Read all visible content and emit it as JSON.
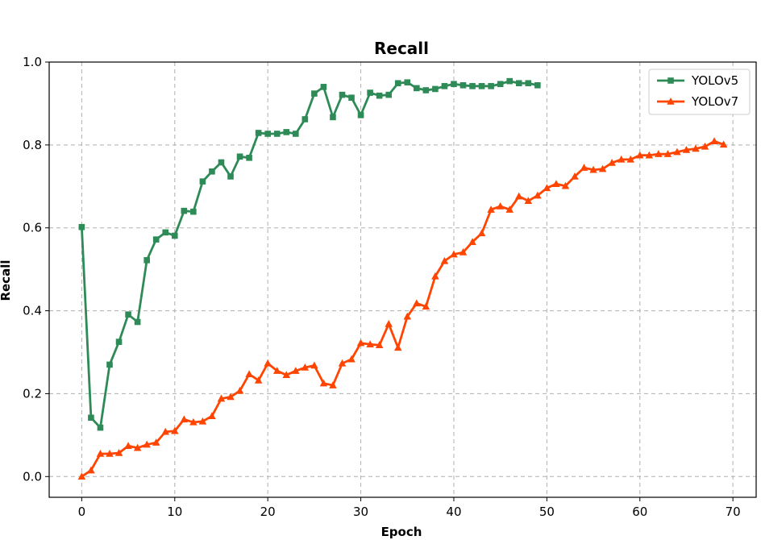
{
  "chart_data": {
    "type": "line",
    "title": "Recall",
    "xlabel": "Epoch",
    "ylabel": "Recall",
    "xlim": [
      -3.5,
      72.5
    ],
    "ylim": [
      -0.05,
      1.0
    ],
    "xticks": [
      "0",
      "10",
      "20",
      "30",
      "40",
      "50",
      "60",
      "70"
    ],
    "yticks": [
      "0.0",
      "0.2",
      "0.4",
      "0.6",
      "0.8",
      "1.0"
    ],
    "grid": true,
    "legend_position": "top-right",
    "series": [
      {
        "name": "YOLOv5",
        "color": "#2e8b57",
        "marker": "square",
        "x": [
          0,
          1,
          2,
          3,
          4,
          5,
          6,
          7,
          8,
          9,
          10,
          11,
          12,
          13,
          14,
          15,
          16,
          17,
          18,
          19,
          20,
          21,
          22,
          23,
          24,
          25,
          26,
          27,
          28,
          29,
          30,
          31,
          32,
          33,
          34,
          35,
          36,
          37,
          38,
          39,
          40,
          41,
          42,
          43,
          44,
          45,
          46,
          47,
          48,
          49
        ],
        "values": [
          0.602,
          0.142,
          0.118,
          0.27,
          0.325,
          0.391,
          0.373,
          0.522,
          0.572,
          0.589,
          0.581,
          0.641,
          0.639,
          0.712,
          0.736,
          0.758,
          0.724,
          0.772,
          0.769,
          0.829,
          0.827,
          0.827,
          0.831,
          0.827,
          0.862,
          0.924,
          0.94,
          0.867,
          0.921,
          0.914,
          0.872,
          0.926,
          0.919,
          0.921,
          0.949,
          0.951,
          0.937,
          0.932,
          0.935,
          0.942,
          0.947,
          0.944,
          0.942,
          0.942,
          0.942,
          0.947,
          0.954,
          0.949,
          0.949,
          0.944
        ]
      },
      {
        "name": "YOLOv7",
        "color": "#ff4500",
        "marker": "triangle",
        "x": [
          0,
          1,
          2,
          3,
          4,
          5,
          6,
          7,
          8,
          9,
          10,
          11,
          12,
          13,
          14,
          15,
          16,
          17,
          18,
          19,
          20,
          21,
          22,
          23,
          24,
          25,
          26,
          27,
          28,
          29,
          30,
          31,
          32,
          33,
          34,
          35,
          36,
          37,
          38,
          39,
          40,
          41,
          42,
          43,
          44,
          45,
          46,
          47,
          48,
          49,
          50,
          51,
          52,
          53,
          54,
          55,
          56,
          57,
          58,
          59,
          60,
          61,
          62,
          63,
          64,
          65,
          66,
          67,
          68,
          69
        ],
        "values": [
          0.0,
          0.015,
          0.055,
          0.055,
          0.057,
          0.074,
          0.069,
          0.077,
          0.082,
          0.108,
          0.11,
          0.138,
          0.131,
          0.133,
          0.146,
          0.188,
          0.192,
          0.207,
          0.247,
          0.232,
          0.273,
          0.255,
          0.245,
          0.255,
          0.263,
          0.268,
          0.225,
          0.22,
          0.273,
          0.283,
          0.322,
          0.319,
          0.317,
          0.368,
          0.311,
          0.386,
          0.418,
          0.41,
          0.483,
          0.52,
          0.536,
          0.541,
          0.566,
          0.587,
          0.644,
          0.652,
          0.644,
          0.676,
          0.665,
          0.678,
          0.696,
          0.706,
          0.701,
          0.724,
          0.745,
          0.74,
          0.742,
          0.757,
          0.765,
          0.765,
          0.775,
          0.775,
          0.778,
          0.778,
          0.783,
          0.788,
          0.791,
          0.796,
          0.809,
          0.801
        ]
      }
    ]
  }
}
